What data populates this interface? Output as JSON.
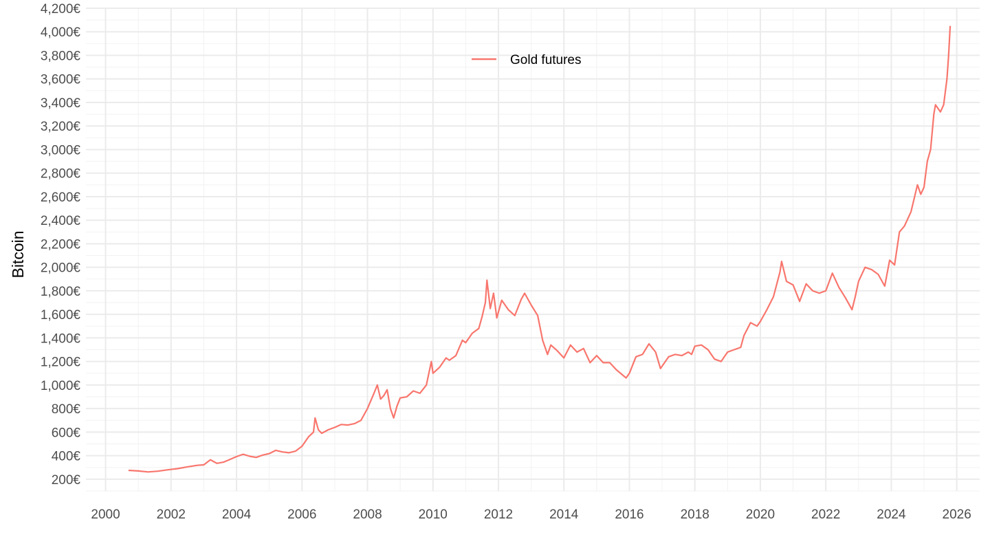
{
  "chart_data": {
    "type": "line",
    "title": "",
    "xlabel": "",
    "ylabel": "Bitcoin",
    "xlim": [
      1999.4,
      2026.7
    ],
    "ylim": [
      100,
      4200
    ],
    "x_ticks": [
      2000,
      2002,
      2004,
      2006,
      2008,
      2010,
      2012,
      2014,
      2016,
      2018,
      2020,
      2022,
      2024,
      2026
    ],
    "x_tick_labels": [
      "2000",
      "2002",
      "2004",
      "2006",
      "2008",
      "2010",
      "2012",
      "2014",
      "2016",
      "2018",
      "2020",
      "2022",
      "2024",
      "2026"
    ],
    "y_ticks": [
      200,
      400,
      600,
      800,
      1000,
      1200,
      1400,
      1600,
      1800,
      2000,
      2200,
      2400,
      2600,
      2800,
      3000,
      3200,
      3400,
      3600,
      3800,
      4000,
      4200
    ],
    "y_tick_labels": [
      "200€",
      "400€",
      "600€",
      "800€",
      "1,000€",
      "1,200€",
      "1,400€",
      "1,600€",
      "1,800€",
      "2,000€",
      "2,200€",
      "2,400€",
      "2,600€",
      "2,800€",
      "3,000€",
      "3,200€",
      "3,400€",
      "3,600€",
      "3,800€",
      "4,000€",
      "4,200€"
    ],
    "grid": true,
    "legend": {
      "position": "top-center"
    },
    "series": [
      {
        "name": "Gold futures",
        "color": "#f8766d",
        "points": [
          [
            2000.7,
            275
          ],
          [
            2001.0,
            270
          ],
          [
            2001.3,
            262
          ],
          [
            2001.6,
            268
          ],
          [
            2001.9,
            280
          ],
          [
            2002.2,
            290
          ],
          [
            2002.5,
            305
          ],
          [
            2002.8,
            318
          ],
          [
            2003.0,
            322
          ],
          [
            2003.2,
            365
          ],
          [
            2003.4,
            335
          ],
          [
            2003.6,
            345
          ],
          [
            2003.8,
            368
          ],
          [
            2004.0,
            392
          ],
          [
            2004.2,
            412
          ],
          [
            2004.4,
            395
          ],
          [
            2004.6,
            385
          ],
          [
            2004.8,
            405
          ],
          [
            2005.0,
            418
          ],
          [
            2005.2,
            445
          ],
          [
            2005.4,
            432
          ],
          [
            2005.6,
            425
          ],
          [
            2005.8,
            438
          ],
          [
            2006.0,
            480
          ],
          [
            2006.2,
            560
          ],
          [
            2006.35,
            600
          ],
          [
            2006.4,
            720
          ],
          [
            2006.5,
            620
          ],
          [
            2006.6,
            590
          ],
          [
            2006.8,
            620
          ],
          [
            2007.0,
            640
          ],
          [
            2007.2,
            665
          ],
          [
            2007.4,
            660
          ],
          [
            2007.6,
            672
          ],
          [
            2007.8,
            700
          ],
          [
            2008.0,
            800
          ],
          [
            2008.2,
            930
          ],
          [
            2008.3,
            1000
          ],
          [
            2008.4,
            880
          ],
          [
            2008.5,
            910
          ],
          [
            2008.6,
            960
          ],
          [
            2008.7,
            800
          ],
          [
            2008.8,
            720
          ],
          [
            2008.9,
            820
          ],
          [
            2009.0,
            890
          ],
          [
            2009.2,
            900
          ],
          [
            2009.4,
            950
          ],
          [
            2009.6,
            930
          ],
          [
            2009.8,
            1000
          ],
          [
            2009.95,
            1200
          ],
          [
            2010.0,
            1100
          ],
          [
            2010.2,
            1150
          ],
          [
            2010.4,
            1230
          ],
          [
            2010.5,
            1210
          ],
          [
            2010.7,
            1250
          ],
          [
            2010.9,
            1380
          ],
          [
            2011.0,
            1360
          ],
          [
            2011.2,
            1440
          ],
          [
            2011.4,
            1480
          ],
          [
            2011.5,
            1580
          ],
          [
            2011.6,
            1700
          ],
          [
            2011.65,
            1890
          ],
          [
            2011.75,
            1650
          ],
          [
            2011.85,
            1780
          ],
          [
            2011.95,
            1570
          ],
          [
            2012.1,
            1720
          ],
          [
            2012.3,
            1640
          ],
          [
            2012.5,
            1590
          ],
          [
            2012.7,
            1730
          ],
          [
            2012.8,
            1780
          ],
          [
            2013.0,
            1680
          ],
          [
            2013.2,
            1590
          ],
          [
            2013.35,
            1380
          ],
          [
            2013.5,
            1260
          ],
          [
            2013.6,
            1340
          ],
          [
            2013.8,
            1290
          ],
          [
            2014.0,
            1230
          ],
          [
            2014.2,
            1340
          ],
          [
            2014.4,
            1280
          ],
          [
            2014.6,
            1310
          ],
          [
            2014.8,
            1190
          ],
          [
            2015.0,
            1250
          ],
          [
            2015.2,
            1190
          ],
          [
            2015.4,
            1190
          ],
          [
            2015.6,
            1130
          ],
          [
            2015.9,
            1060
          ],
          [
            2016.0,
            1100
          ],
          [
            2016.2,
            1240
          ],
          [
            2016.4,
            1260
          ],
          [
            2016.6,
            1350
          ],
          [
            2016.8,
            1280
          ],
          [
            2016.95,
            1140
          ],
          [
            2017.2,
            1240
          ],
          [
            2017.4,
            1260
          ],
          [
            2017.6,
            1250
          ],
          [
            2017.8,
            1280
          ],
          [
            2017.9,
            1260
          ],
          [
            2018.0,
            1330
          ],
          [
            2018.2,
            1340
          ],
          [
            2018.4,
            1300
          ],
          [
            2018.6,
            1220
          ],
          [
            2018.8,
            1200
          ],
          [
            2019.0,
            1280
          ],
          [
            2019.2,
            1300
          ],
          [
            2019.4,
            1320
          ],
          [
            2019.5,
            1420
          ],
          [
            2019.7,
            1530
          ],
          [
            2019.9,
            1500
          ],
          [
            2020.0,
            1540
          ],
          [
            2020.2,
            1640
          ],
          [
            2020.4,
            1750
          ],
          [
            2020.6,
            1960
          ],
          [
            2020.65,
            2050
          ],
          [
            2020.8,
            1880
          ],
          [
            2021.0,
            1850
          ],
          [
            2021.2,
            1710
          ],
          [
            2021.4,
            1860
          ],
          [
            2021.6,
            1800
          ],
          [
            2021.8,
            1780
          ],
          [
            2022.0,
            1800
          ],
          [
            2022.2,
            1950
          ],
          [
            2022.4,
            1830
          ],
          [
            2022.6,
            1740
          ],
          [
            2022.8,
            1640
          ],
          [
            2022.9,
            1750
          ],
          [
            2023.0,
            1880
          ],
          [
            2023.2,
            2000
          ],
          [
            2023.4,
            1980
          ],
          [
            2023.6,
            1940
          ],
          [
            2023.8,
            1840
          ],
          [
            2023.95,
            2060
          ],
          [
            2024.1,
            2020
          ],
          [
            2024.25,
            2300
          ],
          [
            2024.4,
            2350
          ],
          [
            2024.6,
            2470
          ],
          [
            2024.8,
            2700
          ],
          [
            2024.9,
            2620
          ],
          [
            2025.0,
            2680
          ],
          [
            2025.1,
            2900
          ],
          [
            2025.2,
            3000
          ],
          [
            2025.3,
            3300
          ],
          [
            2025.35,
            3380
          ],
          [
            2025.5,
            3320
          ],
          [
            2025.6,
            3380
          ],
          [
            2025.7,
            3600
          ],
          [
            2025.75,
            3800
          ],
          [
            2025.8,
            4050
          ]
        ]
      }
    ]
  }
}
